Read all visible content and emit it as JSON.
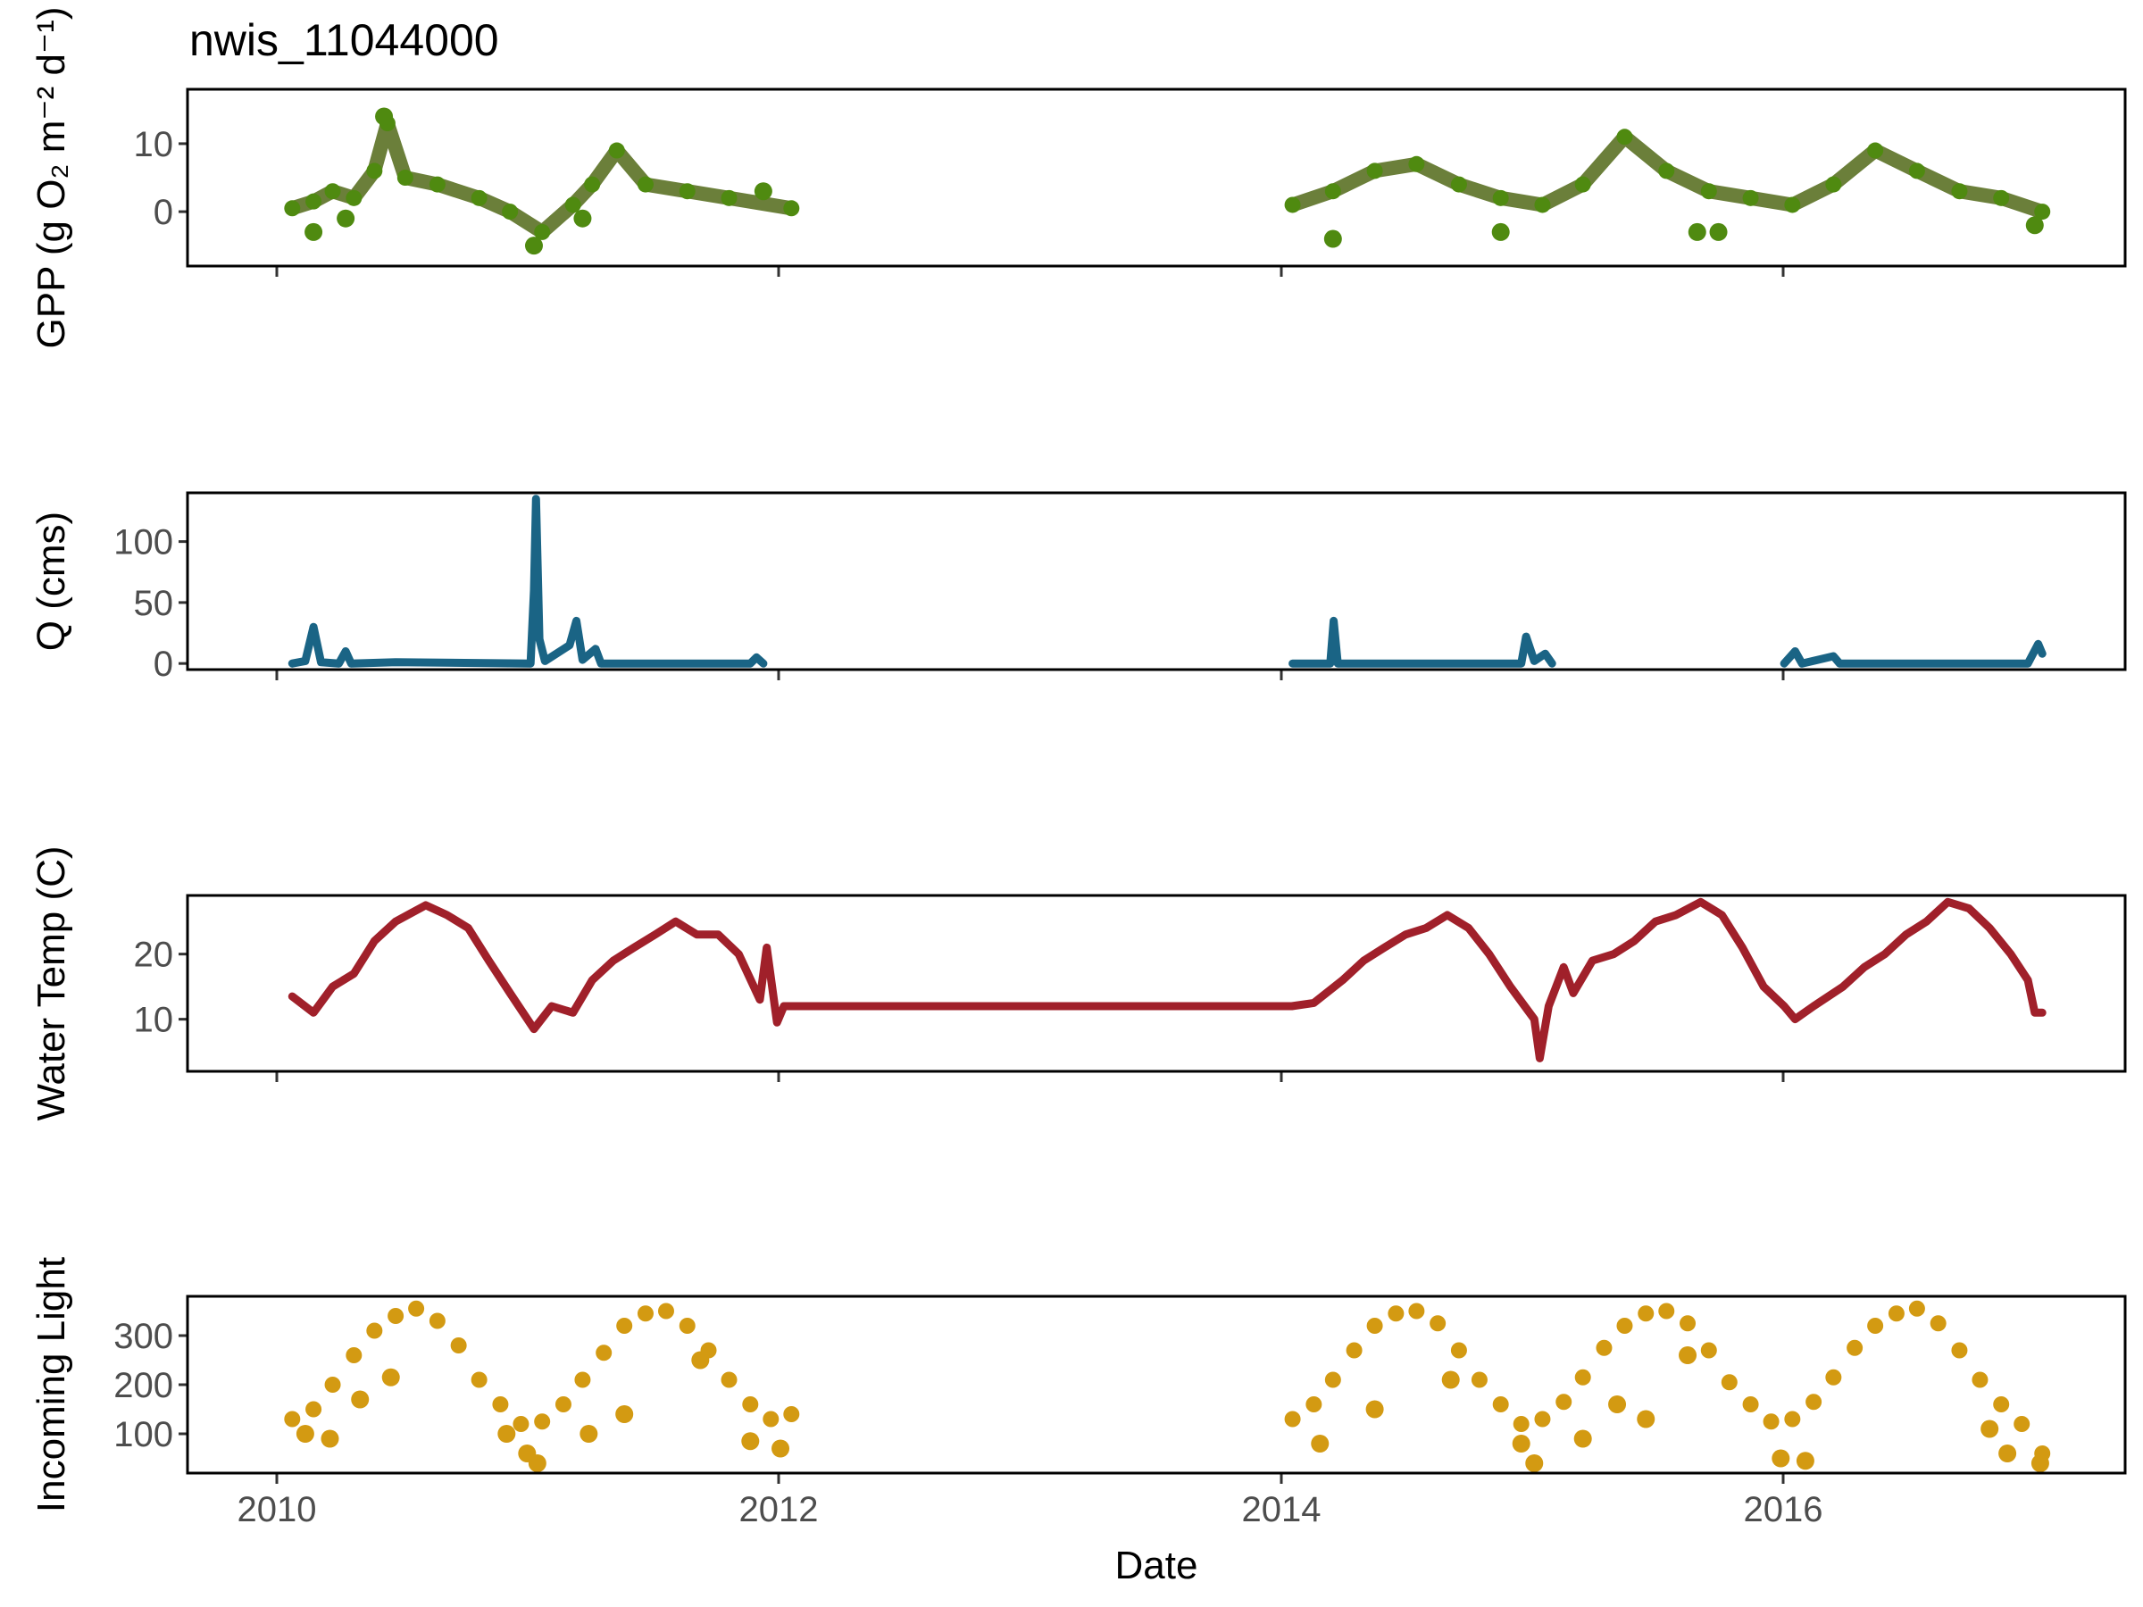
{
  "chart_data": {
    "type": "line",
    "title": "nwis_11044000",
    "xlabel": "Date",
    "x_ticks": [
      "2010",
      "2012",
      "2014",
      "2016"
    ],
    "x_range": [
      "2009-08-01",
      "2017-05-01"
    ],
    "grid": false,
    "panels": [
      {
        "name": "gpp",
        "ylabel": "GPP (g O₂ m⁻² d⁻¹)",
        "ylim": [
          -8,
          18
        ],
        "y_ticks": [
          0,
          10
        ],
        "color": "#4f8a10",
        "fill": "#6b7f3a",
        "style": "points-line",
        "series": [
          {
            "x": "2010-01-01",
            "y": 0.5
          },
          {
            "x": "2010-02-01",
            "y": 1.5
          },
          {
            "x": "2010-03-01",
            "y": 3
          },
          {
            "x": "2010-04-01",
            "y": 2
          },
          {
            "x": "2010-05-01",
            "y": 6
          },
          {
            "x": "2010-05-20",
            "y": 13
          },
          {
            "x": "2010-06-15",
            "y": 5
          },
          {
            "x": "2010-08-01",
            "y": 4
          },
          {
            "x": "2010-10-01",
            "y": 2
          },
          {
            "x": "2010-11-15",
            "y": 0
          },
          {
            "x": "2011-01-01",
            "y": -3
          },
          {
            "x": "2011-02-15",
            "y": 1
          },
          {
            "x": "2011-03-15",
            "y": 4
          },
          {
            "x": "2011-04-20",
            "y": 9
          },
          {
            "x": "2011-06-01",
            "y": 4
          },
          {
            "x": "2011-08-01",
            "y": 3
          },
          {
            "x": "2011-10-01",
            "y": 2
          },
          {
            "x": "2011-12-31",
            "y": 0.5
          },
          {
            "x": "2014-01-01",
            "y": 1
          },
          {
            "x": "2014-03-01",
            "y": 3
          },
          {
            "x": "2014-05-01",
            "y": 6
          },
          {
            "x": "2014-07-01",
            "y": 7
          },
          {
            "x": "2014-09-01",
            "y": 4
          },
          {
            "x": "2014-11-01",
            "y": 2
          },
          {
            "x": "2015-01-01",
            "y": 1
          },
          {
            "x": "2015-03-01",
            "y": 4
          },
          {
            "x": "2015-05-01",
            "y": 11
          },
          {
            "x": "2015-07-01",
            "y": 6
          },
          {
            "x": "2015-09-01",
            "y": 3
          },
          {
            "x": "2015-11-01",
            "y": 2
          },
          {
            "x": "2016-01-01",
            "y": 1
          },
          {
            "x": "2016-03-01",
            "y": 4
          },
          {
            "x": "2016-05-01",
            "y": 9
          },
          {
            "x": "2016-07-01",
            "y": 6
          },
          {
            "x": "2016-09-01",
            "y": 3
          },
          {
            "x": "2016-11-01",
            "y": 2
          },
          {
            "x": "2016-12-31",
            "y": 0
          }
        ],
        "outliers": [
          {
            "x": "2010-02-01",
            "y": -3
          },
          {
            "x": "2010-05-15",
            "y": 14
          },
          {
            "x": "2010-03-20",
            "y": -1
          },
          {
            "x": "2011-03-01",
            "y": -1
          },
          {
            "x": "2011-11-20",
            "y": 3
          },
          {
            "x": "2014-03-01",
            "y": -4
          },
          {
            "x": "2014-11-01",
            "y": -3
          },
          {
            "x": "2015-08-15",
            "y": -3
          },
          {
            "x": "2015-09-15",
            "y": -3
          },
          {
            "x": "2016-12-20",
            "y": -2
          },
          {
            "x": "2010-12-20",
            "y": -5
          }
        ]
      },
      {
        "name": "q",
        "ylabel": "Q (cms)",
        "ylim": [
          -5,
          140
        ],
        "y_ticks": [
          0,
          50,
          100
        ],
        "color": "#1a6485",
        "style": "line",
        "series": [
          {
            "x": "2010-01-01",
            "y": 0
          },
          {
            "x": "2010-01-20",
            "y": 2
          },
          {
            "x": "2010-02-01",
            "y": 30
          },
          {
            "x": "2010-02-12",
            "y": 1
          },
          {
            "x": "2010-03-10",
            "y": 0
          },
          {
            "x": "2010-03-20",
            "y": 10
          },
          {
            "x": "2010-03-28",
            "y": 0
          },
          {
            "x": "2010-06-01",
            "y": 1
          },
          {
            "x": "2010-12-15",
            "y": 0
          },
          {
            "x": "2010-12-20",
            "y": 60
          },
          {
            "x": "2010-12-23",
            "y": 135
          },
          {
            "x": "2010-12-28",
            "y": 20
          },
          {
            "x": "2011-01-05",
            "y": 2
          },
          {
            "x": "2011-02-10",
            "y": 15
          },
          {
            "x": "2011-02-20",
            "y": 35
          },
          {
            "x": "2011-03-01",
            "y": 3
          },
          {
            "x": "2011-03-20",
            "y": 12
          },
          {
            "x": "2011-03-28",
            "y": 0
          },
          {
            "x": "2011-11-01",
            "y": 0
          },
          {
            "x": "2011-11-10",
            "y": 5
          },
          {
            "x": "2011-11-20",
            "y": 0
          },
          {
            "x": "2014-01-01",
            "y": 0
          },
          {
            "x": "2014-02-25",
            "y": 0
          },
          {
            "x": "2014-03-02",
            "y": 35
          },
          {
            "x": "2014-03-08",
            "y": 0
          },
          {
            "x": "2014-12-01",
            "y": 0
          },
          {
            "x": "2014-12-08",
            "y": 22
          },
          {
            "x": "2014-12-20",
            "y": 2
          },
          {
            "x": "2015-01-05",
            "y": 8
          },
          {
            "x": "2015-01-15",
            "y": 0
          },
          {
            "x": "2015-12-20",
            "y": 0
          },
          {
            "x": "2016-01-05",
            "y": 10
          },
          {
            "x": "2016-01-15",
            "y": 0
          },
          {
            "x": "2016-03-01",
            "y": 6
          },
          {
            "x": "2016-03-10",
            "y": 0
          },
          {
            "x": "2016-12-10",
            "y": 0
          },
          {
            "x": "2016-12-25",
            "y": 16
          },
          {
            "x": "2016-12-31",
            "y": 8
          }
        ]
      },
      {
        "name": "temp",
        "ylabel": "Water Temp (C)",
        "ylim": [
          2,
          29
        ],
        "y_ticks": [
          10,
          20
        ],
        "color": "#a0202a",
        "style": "line",
        "series": [
          {
            "x": "2010-01-01",
            "y": 13.5
          },
          {
            "x": "2010-02-01",
            "y": 11
          },
          {
            "x": "2010-03-01",
            "y": 15
          },
          {
            "x": "2010-04-01",
            "y": 17
          },
          {
            "x": "2010-05-01",
            "y": 22
          },
          {
            "x": "2010-06-01",
            "y": 25
          },
          {
            "x": "2010-07-15",
            "y": 27.5
          },
          {
            "x": "2010-08-15",
            "y": 26
          },
          {
            "x": "2010-09-15",
            "y": 24
          },
          {
            "x": "2010-10-15",
            "y": 19
          },
          {
            "x": "2010-11-15",
            "y": 14
          },
          {
            "x": "2010-12-20",
            "y": 8.5
          },
          {
            "x": "2011-01-15",
            "y": 12
          },
          {
            "x": "2011-02-15",
            "y": 11
          },
          {
            "x": "2011-03-15",
            "y": 16
          },
          {
            "x": "2011-04-15",
            "y": 19
          },
          {
            "x": "2011-05-15",
            "y": 21
          },
          {
            "x": "2011-06-15",
            "y": 23
          },
          {
            "x": "2011-07-15",
            "y": 25
          },
          {
            "x": "2011-08-15",
            "y": 23
          },
          {
            "x": "2011-09-15",
            "y": 23
          },
          {
            "x": "2011-10-15",
            "y": 20
          },
          {
            "x": "2011-11-15",
            "y": 13
          },
          {
            "x": "2011-11-25",
            "y": 21
          },
          {
            "x": "2011-12-10",
            "y": 9.5
          },
          {
            "x": "2011-12-20",
            "y": 12
          },
          {
            "x": "2013-12-31",
            "y": 12
          },
          {
            "x": "2014-02-01",
            "y": 12.5
          },
          {
            "x": "2014-03-15",
            "y": 16
          },
          {
            "x": "2014-04-15",
            "y": 19
          },
          {
            "x": "2014-05-15",
            "y": 21
          },
          {
            "x": "2014-06-15",
            "y": 23
          },
          {
            "x": "2014-07-15",
            "y": 24
          },
          {
            "x": "2014-08-15",
            "y": 26
          },
          {
            "x": "2014-09-15",
            "y": 24
          },
          {
            "x": "2014-10-15",
            "y": 20
          },
          {
            "x": "2014-11-15",
            "y": 15
          },
          {
            "x": "2014-12-20",
            "y": 10
          },
          {
            "x": "2014-12-28",
            "y": 4
          },
          {
            "x": "2015-01-10",
            "y": 12
          },
          {
            "x": "2015-02-01",
            "y": 18
          },
          {
            "x": "2015-02-15",
            "y": 14
          },
          {
            "x": "2015-03-15",
            "y": 19
          },
          {
            "x": "2015-04-15",
            "y": 20
          },
          {
            "x": "2015-05-15",
            "y": 22
          },
          {
            "x": "2015-06-15",
            "y": 25
          },
          {
            "x": "2015-07-15",
            "y": 26
          },
          {
            "x": "2015-08-20",
            "y": 28
          },
          {
            "x": "2015-09-20",
            "y": 26
          },
          {
            "x": "2015-10-20",
            "y": 21
          },
          {
            "x": "2015-11-20",
            "y": 15
          },
          {
            "x": "2015-12-20",
            "y": 12
          },
          {
            "x": "2016-01-05",
            "y": 10
          },
          {
            "x": "2016-02-01",
            "y": 12
          },
          {
            "x": "2016-03-15",
            "y": 15
          },
          {
            "x": "2016-04-15",
            "y": 18
          },
          {
            "x": "2016-05-15",
            "y": 20
          },
          {
            "x": "2016-06-15",
            "y": 23
          },
          {
            "x": "2016-07-15",
            "y": 25
          },
          {
            "x": "2016-08-15",
            "y": 28
          },
          {
            "x": "2016-09-15",
            "y": 27
          },
          {
            "x": "2016-10-15",
            "y": 24
          },
          {
            "x": "2016-11-15",
            "y": 20
          },
          {
            "x": "2016-12-10",
            "y": 16
          },
          {
            "x": "2016-12-20",
            "y": 11
          },
          {
            "x": "2016-12-31",
            "y": 11
          }
        ]
      },
      {
        "name": "light",
        "ylabel": "Incoming Light",
        "ylim": [
          20,
          380
        ],
        "y_ticks": [
          100,
          200,
          300
        ],
        "color": "#d39a12",
        "style": "points",
        "series": [
          {
            "x": "2010-01-01",
            "y": 130
          },
          {
            "x": "2010-02-01",
            "y": 150
          },
          {
            "x": "2010-03-01",
            "y": 200
          },
          {
            "x": "2010-04-01",
            "y": 260
          },
          {
            "x": "2010-05-01",
            "y": 310
          },
          {
            "x": "2010-06-01",
            "y": 340
          },
          {
            "x": "2010-07-01",
            "y": 355
          },
          {
            "x": "2010-08-01",
            "y": 330
          },
          {
            "x": "2010-09-01",
            "y": 280
          },
          {
            "x": "2010-10-01",
            "y": 210
          },
          {
            "x": "2010-11-01",
            "y": 160
          },
          {
            "x": "2010-12-01",
            "y": 120
          },
          {
            "x": "2011-01-01",
            "y": 125
          },
          {
            "x": "2011-02-01",
            "y": 160
          },
          {
            "x": "2011-03-01",
            "y": 210
          },
          {
            "x": "2011-04-01",
            "y": 265
          },
          {
            "x": "2011-05-01",
            "y": 320
          },
          {
            "x": "2011-06-01",
            "y": 345
          },
          {
            "x": "2011-07-01",
            "y": 350
          },
          {
            "x": "2011-08-01",
            "y": 320
          },
          {
            "x": "2011-09-01",
            "y": 270
          },
          {
            "x": "2011-10-01",
            "y": 210
          },
          {
            "x": "2011-11-01",
            "y": 160
          },
          {
            "x": "2011-12-01",
            "y": 130
          },
          {
            "x": "2011-12-31",
            "y": 140
          },
          {
            "x": "2014-01-01",
            "y": 130
          },
          {
            "x": "2014-02-01",
            "y": 160
          },
          {
            "x": "2014-03-01",
            "y": 210
          },
          {
            "x": "2014-04-01",
            "y": 270
          },
          {
            "x": "2014-05-01",
            "y": 320
          },
          {
            "x": "2014-06-01",
            "y": 345
          },
          {
            "x": "2014-07-01",
            "y": 350
          },
          {
            "x": "2014-08-01",
            "y": 325
          },
          {
            "x": "2014-09-01",
            "y": 270
          },
          {
            "x": "2014-10-01",
            "y": 210
          },
          {
            "x": "2014-11-01",
            "y": 160
          },
          {
            "x": "2014-12-01",
            "y": 120
          },
          {
            "x": "2015-01-01",
            "y": 130
          },
          {
            "x": "2015-02-01",
            "y": 165
          },
          {
            "x": "2015-03-01",
            "y": 215
          },
          {
            "x": "2015-04-01",
            "y": 275
          },
          {
            "x": "2015-05-01",
            "y": 320
          },
          {
            "x": "2015-06-01",
            "y": 345
          },
          {
            "x": "2015-07-01",
            "y": 350
          },
          {
            "x": "2015-08-01",
            "y": 325
          },
          {
            "x": "2015-09-01",
            "y": 270
          },
          {
            "x": "2015-10-01",
            "y": 205
          },
          {
            "x": "2015-11-01",
            "y": 160
          },
          {
            "x": "2015-12-01",
            "y": 125
          },
          {
            "x": "2016-01-01",
            "y": 130
          },
          {
            "x": "2016-02-01",
            "y": 165
          },
          {
            "x": "2016-03-01",
            "y": 215
          },
          {
            "x": "2016-04-01",
            "y": 275
          },
          {
            "x": "2016-05-01",
            "y": 320
          },
          {
            "x": "2016-06-01",
            "y": 345
          },
          {
            "x": "2016-07-01",
            "y": 355
          },
          {
            "x": "2016-08-01",
            "y": 325
          },
          {
            "x": "2016-09-01",
            "y": 270
          },
          {
            "x": "2016-10-01",
            "y": 210
          },
          {
            "x": "2016-11-01",
            "y": 160
          },
          {
            "x": "2016-12-01",
            "y": 120
          },
          {
            "x": "2016-12-31",
            "y": 60
          }
        ],
        "outliers": [
          {
            "x": "2010-01-20",
            "y": 100
          },
          {
            "x": "2010-02-25",
            "y": 90
          },
          {
            "x": "2010-04-10",
            "y": 170
          },
          {
            "x": "2010-05-25",
            "y": 215
          },
          {
            "x": "2010-11-10",
            "y": 100
          },
          {
            "x": "2010-12-10",
            "y": 60
          },
          {
            "x": "2010-12-25",
            "y": 40
          },
          {
            "x": "2011-03-10",
            "y": 100
          },
          {
            "x": "2011-05-01",
            "y": 140
          },
          {
            "x": "2011-08-20",
            "y": 250
          },
          {
            "x": "2011-11-01",
            "y": 85
          },
          {
            "x": "2011-12-15",
            "y": 70
          },
          {
            "x": "2014-02-10",
            "y": 80
          },
          {
            "x": "2014-05-01",
            "y": 150
          },
          {
            "x": "2014-08-20",
            "y": 210
          },
          {
            "x": "2014-12-01",
            "y": 80
          },
          {
            "x": "2014-12-20",
            "y": 40
          },
          {
            "x": "2015-03-01",
            "y": 90
          },
          {
            "x": "2015-04-20",
            "y": 160
          },
          {
            "x": "2015-06-01",
            "y": 130
          },
          {
            "x": "2015-08-01",
            "y": 260
          },
          {
            "x": "2015-12-15",
            "y": 50
          },
          {
            "x": "2016-01-20",
            "y": 45
          },
          {
            "x": "2016-10-15",
            "y": 110
          },
          {
            "x": "2016-11-10",
            "y": 60
          },
          {
            "x": "2016-12-28",
            "y": 40
          }
        ]
      }
    ]
  }
}
